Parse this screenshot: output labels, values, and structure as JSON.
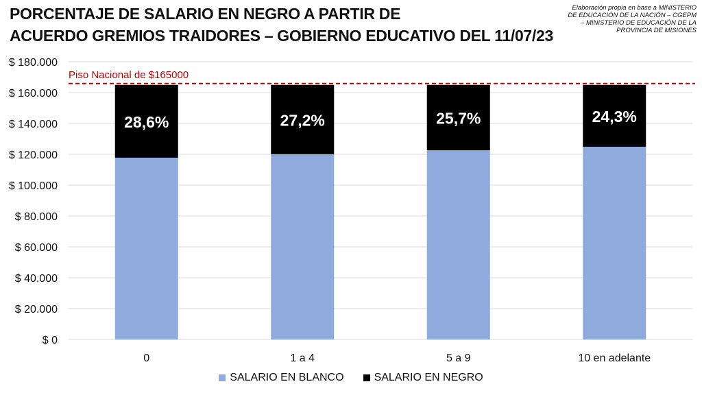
{
  "header": {
    "title_line1": "PORCENTAJE DE SALARIO EN NEGRO A PARTIR DE",
    "title_line2": "ACUERDO GREMIOS TRAIDORES – GOBIERNO EDUCATIVO DEL 11/07/23",
    "source_line1": "Elaboración propia en base a MINISTERIO",
    "source_line2": "DE EDUCACIÓN DE LA NACIÓN – CGEPM",
    "source_line3": "– MINISTERIO DE EDUCACIÓN DE LA",
    "source_line4": "PROVINCIA DE MISIONES"
  },
  "chart_data": {
    "type": "bar",
    "stacked": true,
    "categories": [
      "0",
      "1 a 4",
      "5 a 9",
      "10 en adelante"
    ],
    "series": [
      {
        "name": "SALARIO EN BLANCO",
        "values": [
          117800,
          120100,
          122600,
          124900
        ],
        "color": "#8faadc"
      },
      {
        "name": "SALARIO EN NEGRO",
        "values": [
          47200,
          44900,
          42400,
          40100
        ],
        "color": "#000000"
      }
    ],
    "data_labels": [
      "28,6%",
      "27,2%",
      "25,7%",
      "24,3%"
    ],
    "reference_line": {
      "label": "Piso Nacional de $165000",
      "value": 165000,
      "color": "#c00000"
    },
    "ylim": [
      0,
      180000
    ],
    "yticks": [
      0,
      20000,
      40000,
      60000,
      80000,
      100000,
      120000,
      140000,
      160000,
      180000
    ],
    "ytick_labels": [
      "$ 0",
      "$ 20.000",
      "$ 40.000",
      "$ 60.000",
      "$ 80.000",
      "$ 100.000",
      "$ 120.000",
      "$ 140.000",
      "$ 160.000",
      "$ 180.000"
    ],
    "title": "PORCENTAJE DE SALARIO EN NEGRO A PARTIR DE ACUERDO GREMIOS TRAIDORES – GOBIERNO EDUCATIVO DEL 11/07/23",
    "xlabel": "",
    "ylabel": "",
    "grid": true,
    "legend": "bottom"
  }
}
